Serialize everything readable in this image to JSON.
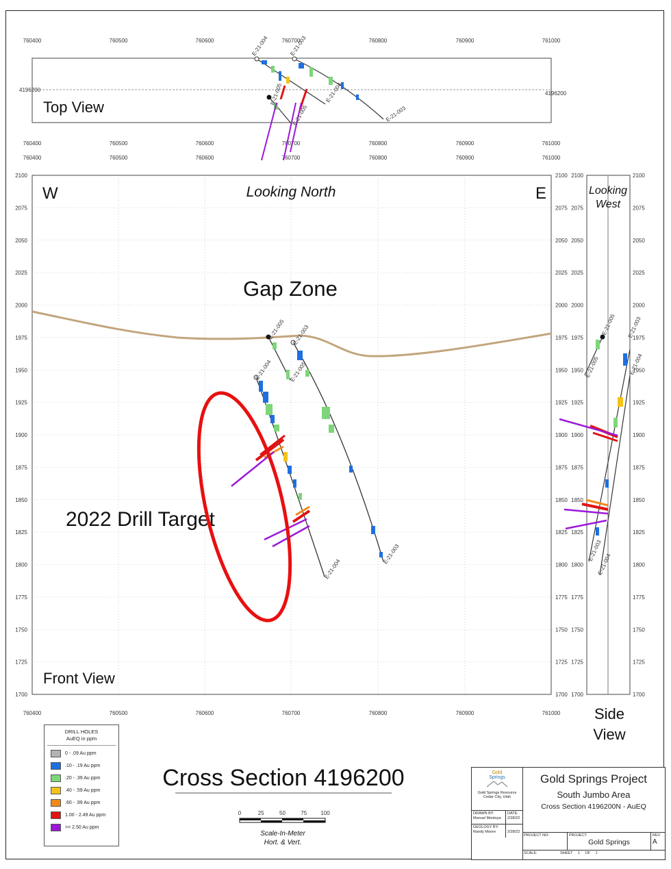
{
  "top_view": {
    "label": "Top View",
    "x_ticks": [
      "760400",
      "760500",
      "760600",
      "760700",
      "760800",
      "760900",
      "761000"
    ],
    "northing": "4196200"
  },
  "front_view": {
    "label": "Front View",
    "looking": "Looking North",
    "west": "W",
    "east": "E",
    "y_ticks": [
      "2100",
      "2075",
      "2050",
      "2025",
      "2000",
      "1975",
      "1950",
      "1925",
      "1900",
      "1875",
      "1850",
      "1825",
      "1800",
      "1775",
      "1750",
      "1725",
      "1700"
    ],
    "x_ticks": [
      "760400",
      "760500",
      "760600",
      "760700",
      "760800",
      "760900",
      "761000"
    ],
    "gap_zone": "Gap Zone",
    "drill_target": "2022 Drill Target"
  },
  "side_view": {
    "looking_1": "Looking",
    "looking_2": "West",
    "label_1": "Side",
    "label_2": "View"
  },
  "drill_holes": [
    "E-21-003",
    "E-21-004",
    "E-21-005"
  ],
  "legend": {
    "title_1": "DRILL HOLES",
    "title_2": "AuEQ in ppm",
    "items": [
      {
        "label": "0 - .09 Au ppm",
        "color": "#b3b3b3"
      },
      {
        "label": ".10 - .19 Au ppm",
        "color": "#1e6fe0"
      },
      {
        "label": ".20 - .39 Au ppm",
        "color": "#7dd67a"
      },
      {
        "label": ".40 - .59 Au ppm",
        "color": "#f4c21a"
      },
      {
        "label": ".60 - .99 Au ppm",
        "color": "#f08a1c"
      },
      {
        "label": "1.00 - 2.49 Au ppm",
        "color": "#e01414"
      },
      {
        "label": ">= 2.50 Au ppm",
        "color": "#9b18d8"
      }
    ]
  },
  "section_title": "Cross Section 4196200",
  "scale_bar": {
    "ticks": [
      "0",
      "25",
      "50",
      "75",
      "100"
    ],
    "caption_1": "Scale-In-Meter",
    "caption_2": "Hort. & Vert."
  },
  "title_block": {
    "logo_1": "Gold",
    "logo_2": "Springs",
    "company_1": "Gold Springs Resource",
    "company_2": "Cedar City, Utah",
    "drawn_by_label": "DRAWN BY:",
    "drawn_by": "Manuel Montoya",
    "date_label": "DATE:",
    "date_1": "2/28/22",
    "geology_by_label": "GEOLOGY BY:",
    "geology_by": "Randy Moore",
    "date_2": "2/28/22",
    "project": "Gold Springs Project",
    "area": "South Jumbo Area",
    "section": "Cross Section 4196200N - AuEQ",
    "project_no_label": "PROJECT NO:",
    "project_label": "PROJECT:",
    "project_name": "Gold Springs",
    "rev_label": "REV",
    "rev": "A",
    "scale_label": "SCALE:",
    "sheet_label": "SHEET",
    "sheet_no": "1",
    "of_label": "OF",
    "sheet_total": "1"
  },
  "colors": {
    "topography": "#c2a57e",
    "target_ellipse": "#e81010",
    "grid": "#8a8a8a"
  }
}
